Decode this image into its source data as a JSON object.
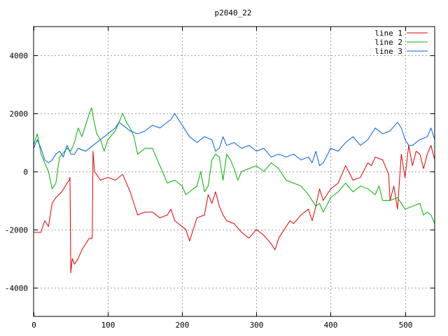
{
  "chart_data": {
    "type": "line",
    "title": "p2040_22",
    "xlabel": "",
    "ylabel": "",
    "xlim": [
      0,
      540
    ],
    "ylim": [
      -5000,
      5000
    ],
    "x_ticks": [
      0,
      100,
      200,
      300,
      400,
      500
    ],
    "y_ticks": [
      -4000,
      -2000,
      0,
      2000,
      4000
    ],
    "grid": true,
    "legend_position": "top-right",
    "colors": {
      "line1": "#e00000",
      "line2": "#00b000",
      "line3": "#0060e0",
      "grid": "#a0a0a0",
      "axes": "#000000"
    },
    "series": [
      {
        "name": "line 1",
        "color": "#e00000",
        "x": [
          0,
          10,
          15,
          20,
          25,
          30,
          38,
          45,
          48,
          49,
          50,
          52,
          55,
          60,
          65,
          70,
          75,
          79,
          80,
          82,
          90,
          100,
          110,
          120,
          125,
          130,
          140,
          150,
          160,
          170,
          180,
          185,
          190,
          200,
          205,
          210,
          220,
          230,
          235,
          240,
          245,
          250,
          255,
          260,
          270,
          280,
          290,
          300,
          310,
          320,
          325,
          330,
          340,
          345,
          350,
          360,
          370,
          375,
          380,
          385,
          390,
          395,
          400,
          410,
          420,
          430,
          440,
          450,
          455,
          460,
          470,
          478,
          480,
          485,
          490,
          495,
          500,
          505,
          510,
          515,
          520,
          525,
          530,
          535,
          540
        ],
        "values": [
          -2100,
          -2100,
          -1700,
          -1900,
          -1100,
          -900,
          -700,
          -400,
          -300,
          -200,
          -3500,
          -3000,
          -3200,
          -3000,
          -2700,
          -2500,
          -2300,
          -2300,
          700,
          0,
          -300,
          -200,
          -300,
          -100,
          -400,
          -700,
          -1500,
          -1400,
          -1400,
          -1600,
          -1500,
          -1300,
          -1700,
          -1900,
          -2000,
          -2400,
          -1600,
          -1500,
          -800,
          -1100,
          -700,
          -1200,
          -1500,
          -1700,
          -1800,
          -2100,
          -2300,
          -2000,
          -2200,
          -2500,
          -2700,
          -2300,
          -1900,
          -1700,
          -1800,
          -1500,
          -1300,
          -1700,
          -1200,
          -600,
          -1000,
          -800,
          -600,
          -400,
          200,
          -300,
          -200,
          300,
          200,
          500,
          400,
          -100,
          -1000,
          -500,
          -1300,
          600,
          -200,
          900,
          200,
          700,
          600,
          100,
          600,
          900,
          400
        ]
      },
      {
        "name": "line 2",
        "color": "#00b000",
        "x": [
          0,
          5,
          10,
          15,
          20,
          25,
          30,
          35,
          45,
          50,
          55,
          60,
          65,
          70,
          75,
          78,
          80,
          85,
          90,
          95,
          100,
          110,
          115,
          120,
          125,
          130,
          135,
          140,
          150,
          160,
          170,
          175,
          180,
          190,
          200,
          205,
          210,
          220,
          225,
          230,
          235,
          240,
          245,
          250,
          255,
          260,
          265,
          270,
          275,
          280,
          290,
          300,
          305,
          310,
          320,
          330,
          340,
          350,
          360,
          370,
          380,
          385,
          390,
          400,
          410,
          420,
          430,
          440,
          450,
          460,
          465,
          470,
          480,
          490,
          500,
          510,
          520,
          525,
          530,
          535,
          540
        ],
        "values": [
          900,
          1300,
          600,
          300,
          0,
          -600,
          -400,
          500,
          800,
          700,
          1000,
          1500,
          1200,
          1600,
          2000,
          2200,
          1900,
          1300,
          1100,
          700,
          1100,
          1400,
          1700,
          2000,
          1700,
          1500,
          1200,
          600,
          800,
          800,
          200,
          -100,
          -400,
          -300,
          -500,
          -800,
          -700,
          -500,
          0,
          -700,
          -500,
          400,
          600,
          500,
          -300,
          600,
          400,
          100,
          -300,
          0,
          100,
          200,
          100,
          0,
          300,
          100,
          -300,
          -400,
          -500,
          -800,
          -1200,
          -1100,
          -1400,
          -900,
          -700,
          -400,
          -700,
          -500,
          -600,
          -800,
          -500,
          -1000,
          -1000,
          -900,
          -1300,
          -1200,
          -1100,
          -1500,
          -1400,
          -1500,
          -1800
        ]
      },
      {
        "name": "line 3",
        "color": "#0060e0",
        "x": [
          0,
          5,
          10,
          15,
          20,
          25,
          30,
          35,
          40,
          45,
          50,
          55,
          60,
          70,
          80,
          90,
          100,
          110,
          115,
          120,
          130,
          140,
          150,
          160,
          170,
          180,
          185,
          190,
          195,
          200,
          210,
          220,
          230,
          240,
          245,
          250,
          255,
          260,
          270,
          280,
          290,
          300,
          310,
          320,
          330,
          340,
          350,
          360,
          370,
          375,
          380,
          385,
          390,
          400,
          410,
          420,
          430,
          440,
          450,
          460,
          470,
          480,
          490,
          495,
          500,
          505,
          510,
          520,
          530,
          535,
          540
        ],
        "values": [
          800,
          1100,
          800,
          400,
          300,
          400,
          600,
          700,
          500,
          900,
          600,
          600,
          800,
          700,
          900,
          1100,
          1300,
          1500,
          1700,
          1600,
          1400,
          1300,
          1400,
          1600,
          1500,
          1700,
          1800,
          2000,
          1800,
          1600,
          1200,
          1000,
          1200,
          1100,
          700,
          800,
          1200,
          900,
          1000,
          800,
          900,
          700,
          800,
          500,
          600,
          500,
          600,
          400,
          500,
          300,
          700,
          200,
          300,
          800,
          700,
          1000,
          1200,
          900,
          1100,
          1500,
          1300,
          1400,
          1700,
          1500,
          1100,
          900,
          900,
          1100,
          1200,
          1500,
          1100
        ]
      }
    ]
  }
}
